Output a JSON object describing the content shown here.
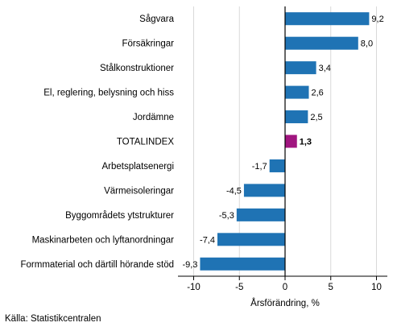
{
  "chart_data": {
    "type": "bar",
    "orientation": "horizontal",
    "categories": [
      "Sågvara",
      "Försäkringar",
      "Stålkonstruktioner",
      "El, reglering, belysning och hiss",
      "Jordämne",
      "TOTALINDEX",
      "Arbetsplatsenergi",
      "Värmeisoleringar",
      "Byggområdets ytstrukturer",
      "Maskinarbeten och lyftanordningar",
      "Formmaterial och därtill hörande stöd"
    ],
    "values": [
      9.2,
      8.0,
      3.4,
      2.6,
      2.5,
      1.3,
      -1.7,
      -4.5,
      -5.3,
      -7.4,
      -9.3
    ],
    "value_labels": [
      "9,2",
      "8,0",
      "3,4",
      "2,6",
      "2,5",
      "1,3",
      "-1,7",
      "-4,5",
      "-5,3",
      "-7,4",
      "-9,3"
    ],
    "highlight_category": "TOTALINDEX",
    "xlabel": "Årsförändring, %",
    "xlim": [
      -12,
      11
    ],
    "xticks": [
      -10,
      -5,
      0,
      5,
      10
    ],
    "xtick_labels": [
      "-10",
      "-5",
      "0",
      "5",
      "10"
    ],
    "grid": true,
    "colors": {
      "bar": "#1f73b4",
      "highlight": "#a0157f",
      "grid": "#d9d9d9",
      "axis": "#000000"
    }
  },
  "source": "Källa: Statistikcentralen"
}
